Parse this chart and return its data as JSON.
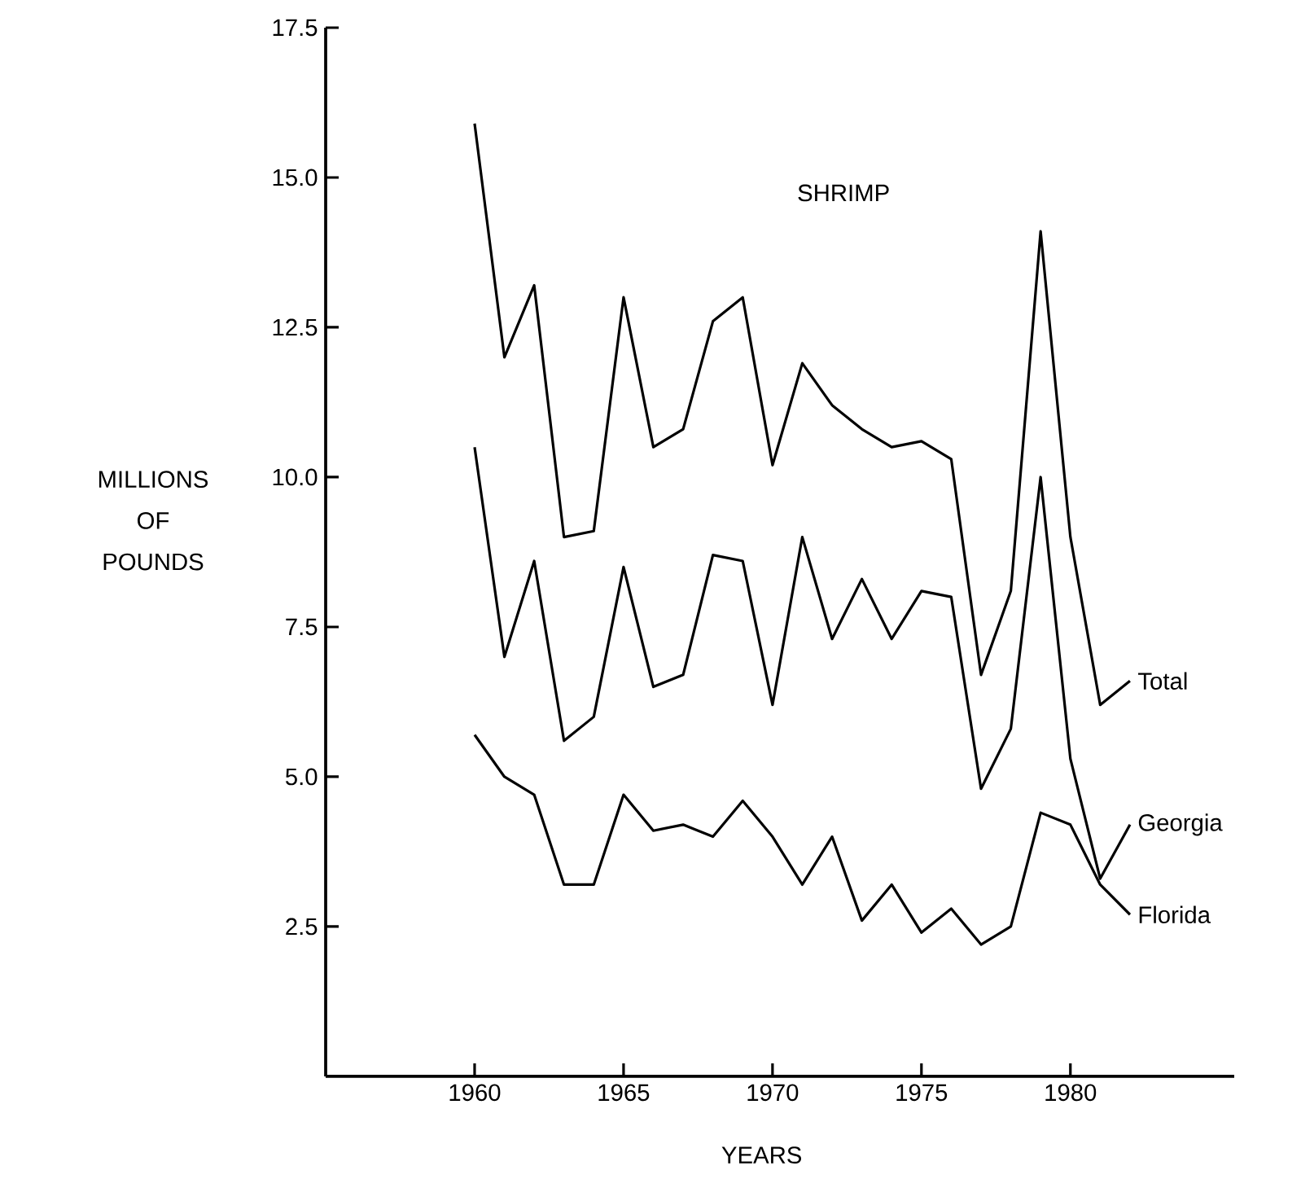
{
  "chart_data": {
    "type": "line",
    "title": "SHRIMP",
    "xlabel": "YEARS",
    "ylabel": "MILLIONS OF POUNDS",
    "x": [
      1960,
      1961,
      1962,
      1963,
      1964,
      1965,
      1966,
      1967,
      1968,
      1969,
      1970,
      1971,
      1972,
      1973,
      1974,
      1975,
      1976,
      1977,
      1978,
      1979,
      1980,
      1981,
      1982
    ],
    "series": [
      {
        "name": "Total",
        "color": "#000000",
        "values": [
          15.9,
          12.0,
          13.2,
          9.0,
          9.1,
          13.0,
          10.5,
          10.8,
          12.6,
          13.0,
          10.2,
          11.9,
          11.2,
          10.8,
          10.5,
          10.6,
          10.3,
          6.7,
          8.1,
          14.1,
          9.0,
          6.2,
          6.6
        ]
      },
      {
        "name": "Georgia",
        "color": "#000000",
        "values": [
          10.5,
          7.0,
          8.6,
          5.6,
          6.0,
          8.5,
          6.5,
          6.7,
          8.7,
          8.6,
          6.2,
          9.0,
          7.3,
          8.3,
          7.3,
          8.1,
          8.0,
          4.8,
          5.8,
          10.0,
          5.3,
          3.3,
          4.2
        ]
      },
      {
        "name": "Florida",
        "color": "#000000",
        "values": [
          5.7,
          5.0,
          4.7,
          3.2,
          3.2,
          4.7,
          4.1,
          4.2,
          4.0,
          4.6,
          4.0,
          3.2,
          4.0,
          2.6,
          3.2,
          2.4,
          2.8,
          2.2,
          2.5,
          4.4,
          4.2,
          3.2,
          2.7
        ]
      }
    ],
    "xlim": [
      1955,
      1985.5
    ],
    "xticks": [
      1960,
      1965,
      1970,
      1975,
      1980
    ],
    "ylim": [
      0,
      17.5
    ],
    "yticks": [
      {
        "value": 2.5,
        "label": "2.5"
      },
      {
        "value": 5,
        "label": "5.0"
      },
      {
        "value": 7.5,
        "label": "7.5"
      },
      {
        "value": 10,
        "label": "10.0"
      },
      {
        "value": 12.5,
        "label": "12.5"
      },
      {
        "value": 15,
        "label": "15.0"
      },
      {
        "value": 17.5,
        "label": "17.5"
      }
    ],
    "line_style": "solid"
  }
}
